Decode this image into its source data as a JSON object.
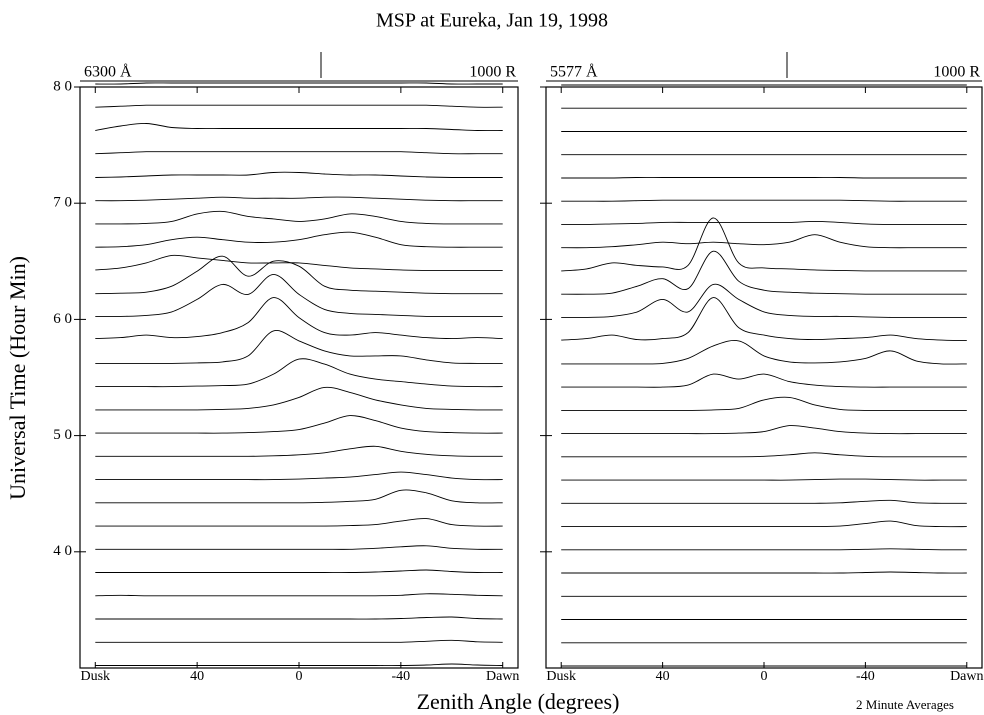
{
  "chart_data": {
    "type": "stacked-profiles",
    "title": "MSP at Eureka, Jan 19, 1998",
    "y_label": "Universal Time (Hour Min)",
    "x_label": "Zenith Angle (degrees)",
    "note": "2 Minute Averages",
    "ylim": [
      3.0,
      8.0
    ],
    "yticks": [
      {
        "value": 4,
        "label": "4 0"
      },
      {
        "value": 5,
        "label": "5 0"
      },
      {
        "value": 6,
        "label": "6 0"
      },
      {
        "value": 7,
        "label": "7 0"
      },
      {
        "value": 8,
        "label": "8 0"
      }
    ],
    "panels": [
      {
        "wavelength": "6300 Å",
        "scale_label": "1000 R",
        "xlim": [
          86,
          -86
        ],
        "xticks": [
          {
            "value": 80,
            "label": "Dusk"
          },
          40,
          0,
          -40,
          {
            "value": -80,
            "label": "Dawn"
          }
        ],
        "x": [
          80,
          70,
          60,
          50,
          40,
          30,
          20,
          10,
          0,
          -10,
          -20,
          -30,
          -40,
          -50,
          -60,
          -70,
          -80
        ],
        "times": [
          3.0,
          3.2,
          3.4,
          3.6,
          3.8,
          4.0,
          4.2,
          4.4,
          4.6,
          4.8,
          5.0,
          5.2,
          5.4,
          5.6,
          5.8,
          6.0,
          6.2,
          6.4,
          6.6,
          6.8,
          7.0,
          7.2,
          7.4,
          7.6,
          7.8,
          8.0
        ],
        "profiles": [
          [
            50,
            50,
            50,
            50,
            50,
            50,
            50,
            50,
            50,
            50,
            50,
            50,
            50,
            60,
            80,
            60,
            50
          ],
          [
            50,
            50,
            50,
            50,
            50,
            50,
            50,
            50,
            50,
            50,
            50,
            50,
            50,
            70,
            90,
            60,
            50
          ],
          [
            50,
            50,
            50,
            50,
            50,
            50,
            50,
            50,
            50,
            50,
            50,
            50,
            60,
            80,
            90,
            60,
            50
          ],
          [
            50,
            60,
            50,
            50,
            50,
            50,
            50,
            50,
            50,
            50,
            50,
            50,
            60,
            90,
            80,
            60,
            50
          ],
          [
            50,
            50,
            50,
            50,
            50,
            50,
            50,
            50,
            50,
            50,
            50,
            60,
            80,
            100,
            70,
            50,
            50
          ],
          [
            50,
            50,
            50,
            50,
            50,
            50,
            50,
            50,
            50,
            50,
            50,
            70,
            100,
            120,
            70,
            50,
            50
          ],
          [
            50,
            50,
            50,
            50,
            50,
            50,
            50,
            50,
            50,
            50,
            60,
            80,
            150,
            200,
            80,
            50,
            50
          ],
          [
            50,
            50,
            50,
            50,
            50,
            50,
            50,
            50,
            50,
            60,
            80,
            120,
            300,
            250,
            90,
            50,
            50
          ],
          [
            50,
            50,
            50,
            50,
            50,
            50,
            50,
            50,
            60,
            80,
            100,
            150,
            200,
            150,
            80,
            50,
            50
          ],
          [
            50,
            50,
            50,
            50,
            50,
            50,
            50,
            60,
            80,
            120,
            200,
            250,
            150,
            90,
            60,
            50,
            50
          ],
          [
            50,
            50,
            50,
            50,
            50,
            50,
            60,
            80,
            120,
            250,
            400,
            300,
            150,
            80,
            60,
            50,
            50
          ],
          [
            50,
            50,
            50,
            50,
            50,
            60,
            80,
            150,
            300,
            500,
            400,
            250,
            150,
            80,
            60,
            50,
            50
          ],
          [
            50,
            50,
            50,
            50,
            60,
            70,
            100,
            300,
            600,
            500,
            300,
            200,
            150,
            100,
            60,
            50,
            50
          ],
          [
            50,
            50,
            50,
            50,
            60,
            80,
            200,
            700,
            500,
            300,
            200,
            200,
            200,
            120,
            60,
            50,
            50
          ],
          [
            80,
            100,
            150,
            100,
            120,
            200,
            400,
            900,
            500,
            200,
            150,
            200,
            150,
            100,
            80,
            100,
            80
          ],
          [
            60,
            60,
            80,
            150,
            400,
            700,
            500,
            900,
            500,
            200,
            120,
            100,
            80,
            60,
            60,
            60,
            60
          ],
          [
            50,
            60,
            80,
            200,
            500,
            800,
            400,
            700,
            600,
            200,
            120,
            100,
            80,
            60,
            50,
            50,
            50
          ],
          [
            60,
            100,
            200,
            350,
            300,
            250,
            200,
            200,
            200,
            150,
            100,
            80,
            60,
            50,
            50,
            50,
            50
          ],
          [
            50,
            60,
            100,
            200,
            250,
            200,
            150,
            150,
            200,
            300,
            350,
            250,
            100,
            60,
            50,
            50,
            50
          ],
          [
            50,
            50,
            60,
            100,
            250,
            300,
            200,
            150,
            100,
            150,
            250,
            200,
            100,
            60,
            50,
            50,
            50
          ],
          [
            50,
            50,
            60,
            80,
            100,
            120,
            100,
            100,
            100,
            120,
            120,
            100,
            80,
            60,
            50,
            50,
            50
          ],
          [
            50,
            60,
            80,
            100,
            100,
            100,
            100,
            150,
            150,
            120,
            100,
            100,
            80,
            60,
            50,
            50,
            50
          ],
          [
            60,
            80,
            100,
            100,
            100,
            100,
            100,
            100,
            100,
            100,
            100,
            100,
            100,
            80,
            60,
            60,
            60
          ],
          [
            60,
            150,
            200,
            120,
            100,
            100,
            100,
            100,
            100,
            100,
            100,
            100,
            100,
            100,
            80,
            60,
            60
          ],
          [
            60,
            80,
            100,
            100,
            100,
            100,
            100,
            100,
            100,
            100,
            100,
            100,
            100,
            100,
            80,
            60,
            60
          ],
          [
            60,
            60,
            80,
            80,
            80,
            80,
            80,
            80,
            80,
            80,
            80,
            80,
            80,
            80,
            60,
            60,
            60
          ]
        ]
      },
      {
        "wavelength": "5577 Å",
        "scale_label": "1000 R",
        "xlim": [
          86,
          -86
        ],
        "xticks": [
          {
            "value": 80,
            "label": "Dusk"
          },
          40,
          0,
          -40,
          {
            "value": -80,
            "label": "Dawn"
          }
        ],
        "x": [
          80,
          70,
          60,
          50,
          40,
          30,
          20,
          10,
          0,
          -10,
          -20,
          -30,
          -40,
          -50,
          -60,
          -70,
          -80
        ],
        "times": [
          3.0,
          3.2,
          3.4,
          3.6,
          3.8,
          4.0,
          4.2,
          4.4,
          4.6,
          4.8,
          5.0,
          5.2,
          5.4,
          5.6,
          5.8,
          6.0,
          6.2,
          6.4,
          6.6,
          6.8,
          7.0,
          7.2,
          7.4,
          7.6,
          7.8,
          8.0
        ],
        "profiles": [
          [
            40,
            40,
            40,
            40,
            40,
            40,
            40,
            40,
            40,
            40,
            40,
            40,
            40,
            40,
            40,
            40,
            40
          ],
          [
            40,
            40,
            40,
            40,
            40,
            40,
            40,
            40,
            40,
            40,
            40,
            40,
            40,
            40,
            40,
            40,
            40
          ],
          [
            40,
            40,
            40,
            40,
            40,
            40,
            40,
            40,
            40,
            40,
            40,
            40,
            40,
            40,
            40,
            40,
            40
          ],
          [
            40,
            40,
            40,
            40,
            40,
            40,
            40,
            40,
            40,
            40,
            40,
            40,
            40,
            40,
            40,
            40,
            40
          ],
          [
            40,
            40,
            40,
            40,
            40,
            40,
            40,
            40,
            40,
            40,
            40,
            40,
            50,
            60,
            50,
            40,
            40
          ],
          [
            40,
            40,
            40,
            40,
            40,
            40,
            40,
            40,
            40,
            40,
            40,
            40,
            50,
            60,
            50,
            40,
            40
          ],
          [
            40,
            40,
            40,
            40,
            40,
            40,
            40,
            40,
            40,
            40,
            40,
            50,
            100,
            150,
            60,
            40,
            40
          ],
          [
            40,
            40,
            40,
            40,
            40,
            40,
            40,
            40,
            40,
            40,
            40,
            50,
            80,
            100,
            50,
            40,
            40
          ],
          [
            40,
            40,
            40,
            40,
            40,
            40,
            40,
            40,
            40,
            40,
            50,
            60,
            60,
            50,
            40,
            40,
            40
          ],
          [
            40,
            40,
            40,
            40,
            40,
            40,
            40,
            40,
            50,
            80,
            120,
            80,
            50,
            40,
            40,
            40,
            40
          ],
          [
            40,
            40,
            40,
            40,
            40,
            40,
            40,
            50,
            80,
            200,
            150,
            80,
            50,
            40,
            40,
            40,
            40
          ],
          [
            40,
            40,
            40,
            40,
            40,
            40,
            50,
            80,
            250,
            300,
            150,
            60,
            40,
            40,
            40,
            40,
            40
          ],
          [
            40,
            40,
            40,
            40,
            40,
            80,
            300,
            200,
            300,
            150,
            80,
            50,
            40,
            40,
            40,
            40,
            40
          ],
          [
            40,
            40,
            40,
            40,
            50,
            150,
            400,
            500,
            200,
            80,
            60,
            80,
            150,
            300,
            100,
            40,
            40
          ],
          [
            50,
            80,
            150,
            60,
            80,
            200,
            900,
            300,
            150,
            80,
            60,
            80,
            100,
            150,
            80,
            50,
            40
          ],
          [
            40,
            40,
            60,
            150,
            400,
            150,
            700,
            400,
            150,
            80,
            60,
            60,
            50,
            40,
            40,
            40,
            40
          ],
          [
            40,
            40,
            60,
            200,
            350,
            150,
            900,
            300,
            120,
            80,
            60,
            50,
            40,
            40,
            40,
            40,
            40
          ],
          [
            40,
            80,
            200,
            150,
            120,
            150,
            1100,
            200,
            100,
            80,
            60,
            50,
            40,
            40,
            40,
            40,
            40
          ],
          [
            40,
            40,
            60,
            100,
            150,
            120,
            150,
            120,
            100,
            150,
            300,
            150,
            60,
            40,
            40,
            40,
            40
          ],
          [
            40,
            40,
            50,
            60,
            80,
            80,
            80,
            80,
            80,
            80,
            100,
            80,
            50,
            40,
            40,
            40,
            40
          ],
          [
            40,
            40,
            40,
            50,
            60,
            60,
            60,
            60,
            60,
            60,
            60,
            60,
            50,
            40,
            40,
            40,
            40
          ],
          [
            40,
            40,
            40,
            50,
            50,
            50,
            50,
            50,
            50,
            50,
            50,
            50,
            40,
            40,
            40,
            40,
            40
          ],
          [
            40,
            40,
            40,
            40,
            40,
            40,
            40,
            40,
            40,
            40,
            40,
            40,
            40,
            40,
            40,
            40,
            40
          ],
          [
            40,
            40,
            40,
            40,
            40,
            40,
            40,
            40,
            40,
            40,
            40,
            40,
            40,
            40,
            40,
            40,
            40
          ],
          [
            40,
            40,
            40,
            40,
            40,
            40,
            40,
            40,
            40,
            40,
            40,
            40,
            40,
            40,
            40,
            40,
            40
          ],
          [
            40,
            40,
            40,
            40,
            40,
            40,
            40,
            40,
            40,
            40,
            40,
            40,
            40,
            40,
            40,
            40,
            40
          ]
        ]
      }
    ]
  }
}
